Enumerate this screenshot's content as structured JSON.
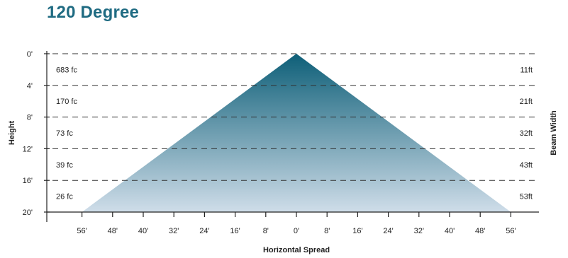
{
  "title": "120 Degree",
  "chart_data": {
    "type": "area",
    "title": "120 Degree",
    "xlabel": "Horizontal Spread",
    "ylabel": "Height",
    "right_label": "Beam Width",
    "x_ticks": [
      -56,
      -48,
      -40,
      -32,
      -24,
      -16,
      -8,
      0,
      8,
      16,
      24,
      32,
      40,
      48,
      56
    ],
    "x_tick_labels": [
      "56'",
      "48'",
      "40'",
      "32'",
      "24'",
      "16'",
      "8'",
      "0'",
      "8'",
      "16'",
      "24'",
      "32'",
      "40'",
      "48'",
      "56'"
    ],
    "y_ticks": [
      0,
      4,
      8,
      12,
      16,
      20
    ],
    "y_tick_labels": [
      "0'",
      "4'",
      "8'",
      "12'",
      "16'",
      "20'"
    ],
    "xlim": [
      -60,
      60
    ],
    "ylim": [
      20,
      0
    ],
    "grid": "dashed horizontal at each height tick",
    "beam": {
      "apex": [
        0,
        0
      ],
      "base_left": [
        -56,
        20
      ],
      "base_right": [
        56,
        20
      ],
      "color_top": "#0e5f78",
      "color_bottom": "#cfdde9"
    },
    "bands": [
      {
        "y_center": 2,
        "illuminance": "683 fc",
        "beam_width": "11ft"
      },
      {
        "y_center": 6,
        "illuminance": "170 fc",
        "beam_width": "21ft"
      },
      {
        "y_center": 10,
        "illuminance": "73 fc",
        "beam_width": "32ft"
      },
      {
        "y_center": 14,
        "illuminance": "39 fc",
        "beam_width": "43ft"
      },
      {
        "y_center": 18,
        "illuminance": "26 fc",
        "beam_width": "53ft"
      }
    ]
  },
  "colors": {
    "title": "#1f6b82",
    "axis": "#222222",
    "gridline": "#333333",
    "text": "#222222"
  }
}
